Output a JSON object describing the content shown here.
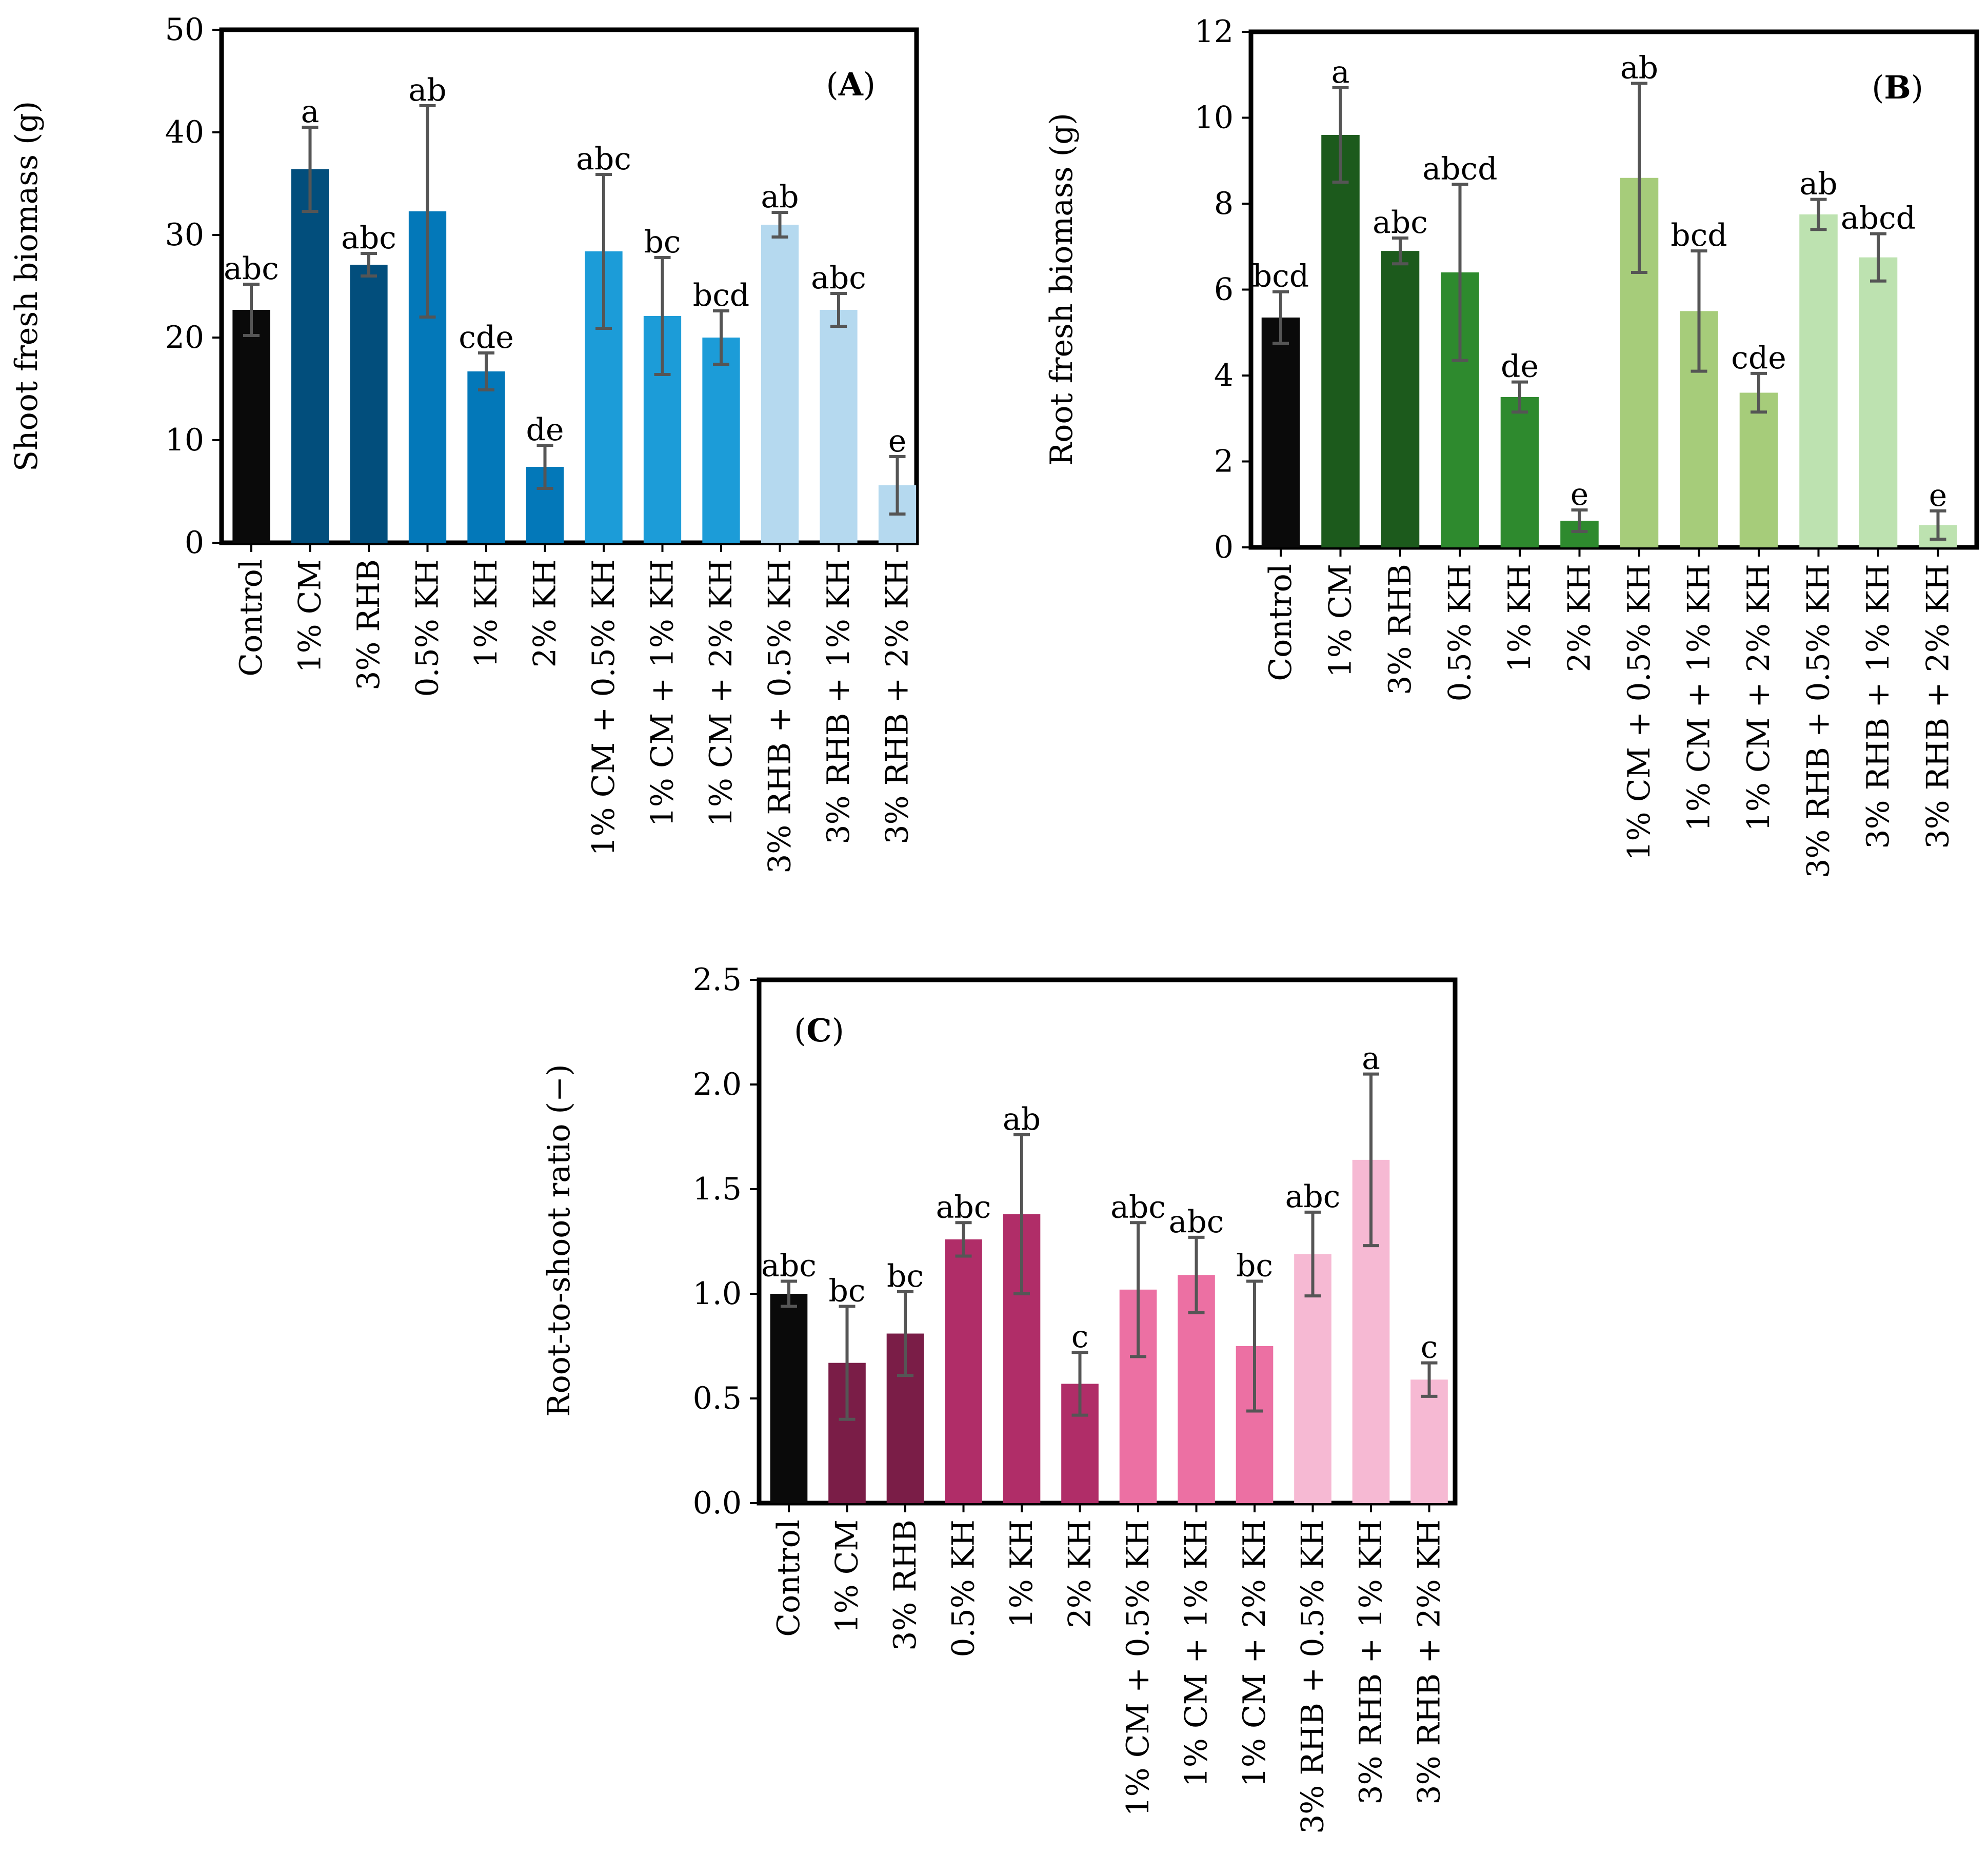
{
  "colors": {
    "frame": "#000000",
    "error_bar": "#555555"
  },
  "chart_data": [
    {
      "type": "bar",
      "panel_label": {
        "open": "(",
        "letter": "A",
        "close": ")"
      },
      "title": "",
      "xlabel": "",
      "ylabel": "Shoot fresh biomass (g)",
      "ylim": [
        0,
        50
      ],
      "yticks": [
        "0",
        "10",
        "20",
        "30",
        "40",
        "50"
      ],
      "categories": [
        "Control",
        "1% CM",
        "3% RHB",
        "0.5% KH",
        "1% KH",
        "2% KH",
        "1% CM + 0.5% KH",
        "1% CM + 1% KH",
        "1% CM + 2% KH",
        "3% RHB + 0.5% KH",
        "3% RHB + 1% KH",
        "3% RHB + 2% KH"
      ],
      "values": [
        22.7,
        36.4,
        27.1,
        32.3,
        16.7,
        7.4,
        28.4,
        22.1,
        20.0,
        31.0,
        22.7,
        5.6
      ],
      "errors": [
        2.5,
        4.1,
        1.1,
        10.3,
        1.8,
        2.1,
        7.5,
        5.7,
        2.6,
        1.2,
        1.6,
        2.8
      ],
      "significance": [
        "abc",
        "a",
        "abc",
        "ab",
        "cde",
        "de",
        "abc",
        "bc",
        "bcd",
        "ab",
        "abc",
        "e"
      ],
      "bar_colors": [
        "#0a0a0a",
        "#024e7c",
        "#024e7c",
        "#0378b9",
        "#0378b9",
        "#0378b9",
        "#1c9cd8",
        "#1c9cd8",
        "#1c9cd8",
        "#b5d9ef",
        "#b5d9ef",
        "#b5d9ef"
      ],
      "grid": false,
      "legend": "none"
    },
    {
      "type": "bar",
      "panel_label": {
        "open": "(",
        "letter": "B",
        "close": ")"
      },
      "title": "",
      "xlabel": "",
      "ylabel": "Root fresh biomass (g)",
      "ylim": [
        0,
        12
      ],
      "yticks": [
        "0",
        "2",
        "4",
        "6",
        "8",
        "10",
        "12"
      ],
      "categories": [
        "Control",
        "1% CM",
        "3% RHB",
        "0.5% KH",
        "1% KH",
        "2% KH",
        "1% CM + 0.5% KH",
        "1% CM + 1% KH",
        "1% CM + 2% KH",
        "3% RHB + 0.5% KH",
        "3% RHB + 1% KH",
        "3% RHB + 2% KH"
      ],
      "values": [
        5.35,
        9.6,
        6.9,
        6.4,
        3.5,
        0.62,
        8.6,
        5.5,
        3.6,
        7.75,
        6.75,
        0.52
      ],
      "errors": [
        0.6,
        1.1,
        0.3,
        2.05,
        0.35,
        0.25,
        2.2,
        1.4,
        0.45,
        0.35,
        0.55,
        0.33
      ],
      "significance": [
        "bcd",
        "a",
        "abc",
        "abcd",
        "de",
        "e",
        "ab",
        "bcd",
        "cde",
        "ab",
        "abcd",
        "e"
      ],
      "bar_colors": [
        "#0a0a0a",
        "#1c5a1c",
        "#1c5a1c",
        "#2e8a2e",
        "#2e8a2e",
        "#2e8a2e",
        "#a6cc7a",
        "#a6cc7a",
        "#a6cc7a",
        "#bde2b0",
        "#bde2b0",
        "#bde2b0"
      ],
      "grid": false,
      "legend": "none"
    },
    {
      "type": "bar",
      "panel_label": {
        "open": "(",
        "letter": "C",
        "close": ")"
      },
      "title": "",
      "xlabel": "",
      "ylabel": "Root-to-shoot ratio (−)",
      "ylim": [
        0,
        2.5
      ],
      "yticks": [
        "0.0",
        "0.5",
        "1.0",
        "1.5",
        "2.0",
        "2.5"
      ],
      "categories": [
        "Control",
        "1% CM",
        "3% RHB",
        "0.5% KH",
        "1% KH",
        "2% KH",
        "1% CM + 0.5% KH",
        "1% CM + 1% KH",
        "1% CM + 2% KH",
        "3% RHB + 0.5% KH",
        "3% RHB + 1% KH",
        "3% RHB + 2% KH"
      ],
      "values": [
        1.0,
        0.67,
        0.81,
        1.26,
        1.38,
        0.57,
        1.02,
        1.09,
        0.75,
        1.19,
        1.64,
        0.59
      ],
      "errors": [
        0.06,
        0.27,
        0.2,
        0.08,
        0.38,
        0.15,
        0.32,
        0.18,
        0.31,
        0.2,
        0.41,
        0.08
      ],
      "significance": [
        "abc",
        "bc",
        "bc",
        "abc",
        "ab",
        "c",
        "abc",
        "abc",
        "bc",
        "abc",
        "a",
        "c"
      ],
      "bar_colors": [
        "#0a0a0a",
        "#7a1d47",
        "#7a1d47",
        "#b02d68",
        "#b02d68",
        "#b02d68",
        "#ec70a3",
        "#ec70a3",
        "#ec70a3",
        "#f6b9d3",
        "#f6b9d3",
        "#f6b9d3"
      ],
      "grid": false,
      "legend": "none"
    }
  ]
}
